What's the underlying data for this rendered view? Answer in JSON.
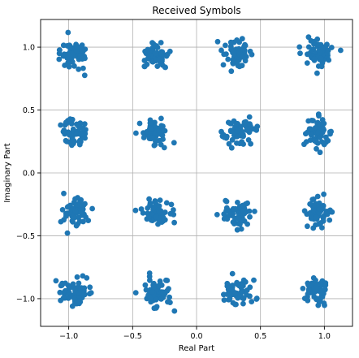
{
  "chart_data": {
    "type": "scatter",
    "title": "Received Symbols",
    "xlabel": "Real Part",
    "ylabel": "Imaginary Part",
    "xlim": [
      -1.22,
      1.22
    ],
    "ylim": [
      -1.22,
      1.22
    ],
    "xticks": [
      -1.0,
      -0.5,
      0.0,
      0.5,
      1.0
    ],
    "yticks": [
      -1.0,
      -0.5,
      0.0,
      0.5,
      1.0
    ],
    "xtick_labels": [
      "−1.0",
      "−0.5",
      "0.0",
      "0.5",
      "1.0"
    ],
    "ytick_labels": [
      "−1.0",
      "−0.5",
      "0.0",
      "0.5",
      "1.0"
    ],
    "grid": true,
    "marker_color": "#1f77b4",
    "constellation": "16-QAM",
    "constellation_levels": [
      -0.95,
      -0.32,
      0.32,
      0.95
    ],
    "points_per_symbol": 60,
    "approx_noise_std": 0.055,
    "series": [
      {
        "values": []
      }
    ]
  }
}
